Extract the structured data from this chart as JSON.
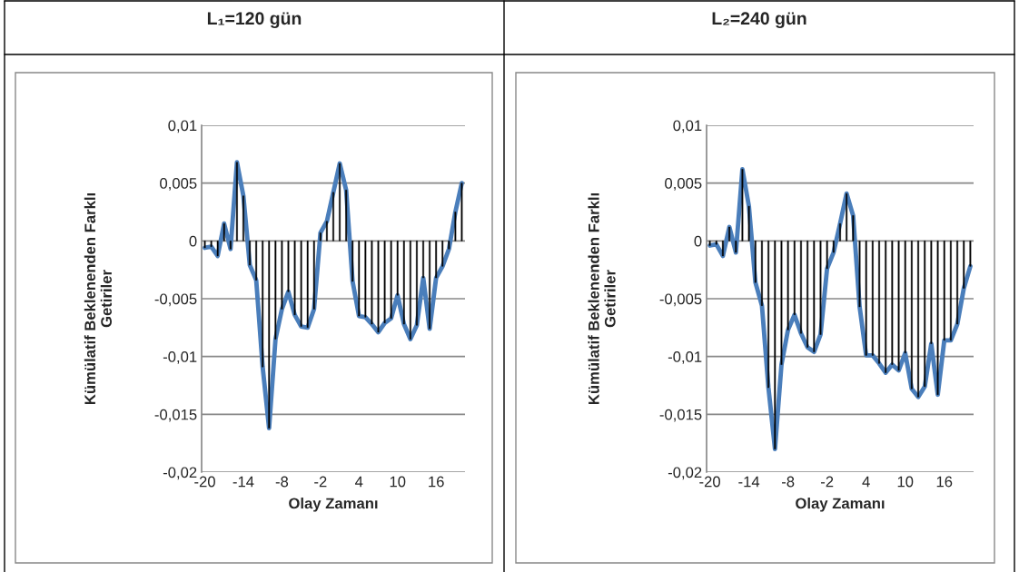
{
  "chart_data": [
    {
      "type": "line",
      "title": "L₁=120 gün",
      "xlabel": "Olay Zamanı",
      "ylabel": "Kümülatif Beklenenden Farklı\nGetiriler",
      "categories": [
        "-20",
        null,
        null,
        null,
        null,
        null,
        "-14",
        null,
        null,
        null,
        null,
        null,
        "-8",
        null,
        null,
        null,
        null,
        null,
        "-2",
        null,
        null,
        null,
        null,
        null,
        "4",
        null,
        null,
        null,
        null,
        null,
        "10",
        null,
        null,
        null,
        null,
        null,
        "16",
        null,
        null,
        null,
        null
      ],
      "series": [
        {
          "type": "bar",
          "color": "#000000",
          "values": [
            -0.0006,
            -0.0005,
            -0.0013,
            0.0015,
            -0.0007,
            0.0068,
            0.0039,
            -0.0021,
            -0.0034,
            -0.0109,
            -0.0162,
            -0.0085,
            -0.0059,
            -0.0044,
            -0.0064,
            -0.0074,
            -0.0075,
            -0.0059,
            0.0007,
            0.0017,
            0.0042,
            0.0067,
            0.0044,
            -0.0035,
            -0.0065,
            -0.0066,
            -0.0072,
            -0.0079,
            -0.0071,
            -0.0067,
            -0.0047,
            -0.0072,
            -0.0085,
            -0.0073,
            -0.0032,
            -0.0076,
            -0.0032,
            -0.0022,
            -0.0007,
            0.0025,
            0.005
          ]
        },
        {
          "type": "line",
          "color": "#4a7ebb",
          "values": [
            -0.0006,
            -0.0005,
            -0.0013,
            0.0015,
            -0.0007,
            0.0068,
            0.0039,
            -0.0021,
            -0.0034,
            -0.0109,
            -0.0162,
            -0.0085,
            -0.0059,
            -0.0044,
            -0.0064,
            -0.0074,
            -0.0075,
            -0.0059,
            0.0007,
            0.0017,
            0.0042,
            0.0067,
            0.0044,
            -0.0035,
            -0.0065,
            -0.0066,
            -0.0072,
            -0.0079,
            -0.0071,
            -0.0067,
            -0.0047,
            -0.0072,
            -0.0085,
            -0.0073,
            -0.0032,
            -0.0076,
            -0.0032,
            -0.0022,
            -0.0007,
            0.0025,
            0.005
          ]
        }
      ],
      "ylim": [
        -0.02,
        0.01
      ],
      "yticks": [
        {
          "value": -0.02,
          "label": "-0,02"
        },
        {
          "value": -0.015,
          "label": "-0,015"
        },
        {
          "value": -0.01,
          "label": "-0,01"
        },
        {
          "value": -0.005,
          "label": "-0,005"
        },
        {
          "value": 0,
          "label": "0"
        },
        {
          "value": 0.005,
          "label": "0,005"
        },
        {
          "value": 0.01,
          "label": "0,01"
        }
      ],
      "grid": "y",
      "legend": false,
      "marker": "none",
      "line_style": "solid"
    },
    {
      "type": "line",
      "title": "L₂=240 gün",
      "xlabel": "Olay Zamanı",
      "ylabel": "Kümülatif Beklenenden Farklı\nGetiriler",
      "categories": [
        "-20",
        null,
        null,
        null,
        null,
        null,
        "-14",
        null,
        null,
        null,
        null,
        null,
        "-8",
        null,
        null,
        null,
        null,
        null,
        "-2",
        null,
        null,
        null,
        null,
        null,
        "4",
        null,
        null,
        null,
        null,
        null,
        "10",
        null,
        null,
        null,
        null,
        null,
        "16",
        null,
        null,
        null,
        null
      ],
      "series": [
        {
          "type": "bar",
          "color": "#000000",
          "values": [
            -0.0004,
            -0.0003,
            -0.0013,
            0.0012,
            -0.001,
            0.0062,
            0.003,
            -0.0036,
            -0.0056,
            -0.0127,
            -0.018,
            -0.0107,
            -0.0077,
            -0.0064,
            -0.008,
            -0.0092,
            -0.0096,
            -0.0081,
            -0.0024,
            -0.001,
            0.0015,
            0.0041,
            0.0022,
            -0.0057,
            -0.0099,
            -0.0099,
            -0.0106,
            -0.0114,
            -0.0107,
            -0.0112,
            -0.0097,
            -0.0128,
            -0.0135,
            -0.0126,
            -0.0089,
            -0.0133,
            -0.0086,
            -0.0086,
            -0.0072,
            -0.0041,
            -0.0022
          ]
        },
        {
          "type": "line",
          "color": "#4a7ebb",
          "values": [
            -0.0004,
            -0.0003,
            -0.0013,
            0.0012,
            -0.001,
            0.0062,
            0.003,
            -0.0036,
            -0.0056,
            -0.0127,
            -0.018,
            -0.0107,
            -0.0077,
            -0.0064,
            -0.008,
            -0.0092,
            -0.0096,
            -0.0081,
            -0.0024,
            -0.001,
            0.0015,
            0.0041,
            0.0022,
            -0.0057,
            -0.0099,
            -0.0099,
            -0.0106,
            -0.0114,
            -0.0107,
            -0.0112,
            -0.0097,
            -0.0128,
            -0.0135,
            -0.0126,
            -0.0089,
            -0.0133,
            -0.0086,
            -0.0086,
            -0.0072,
            -0.0041,
            -0.0022
          ]
        }
      ],
      "ylim": [
        -0.02,
        0.01
      ],
      "yticks": [
        {
          "value": -0.02,
          "label": "-0,02"
        },
        {
          "value": -0.015,
          "label": "-0,015"
        },
        {
          "value": -0.01,
          "label": "-0,01"
        },
        {
          "value": -0.005,
          "label": "-0,005"
        },
        {
          "value": 0,
          "label": "0"
        },
        {
          "value": 0.005,
          "label": "0,005"
        },
        {
          "value": 0.01,
          "label": "0,01"
        }
      ],
      "grid": "y",
      "legend": false,
      "marker": "none",
      "line_style": "solid"
    }
  ]
}
